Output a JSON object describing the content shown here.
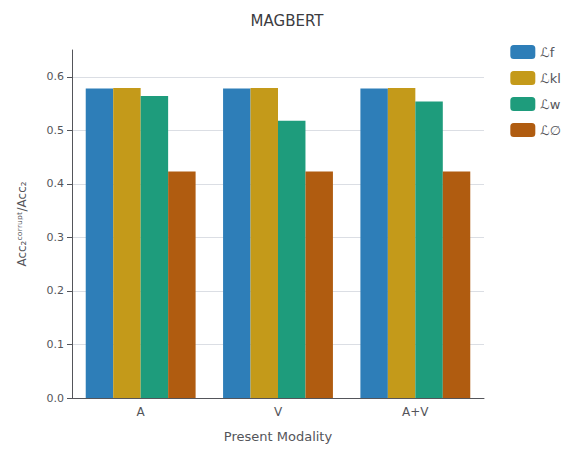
{
  "chart_data": {
    "type": "bar",
    "title": "MAGBERT",
    "categories": [
      "A",
      "V",
      "A+V"
    ],
    "series": [
      {
        "name": "ℒf",
        "color": "#2e7eb8",
        "values": [
          0.578,
          0.578,
          0.578
        ]
      },
      {
        "name": "ℒkl",
        "color": "#c49a1a",
        "values": [
          0.579,
          0.579,
          0.579
        ]
      },
      {
        "name": "ℒw",
        "color": "#1e9c7c",
        "values": [
          0.564,
          0.518,
          0.554
        ]
      },
      {
        "name": "ℒ∅",
        "color": "#b05c10",
        "values": [
          0.423,
          0.423,
          0.423
        ]
      }
    ],
    "xlabel": "Present Modality",
    "ylabel": "Acc₂ᶜᵒʳʳᵘᵖᵗ/Acc₂",
    "ylim": [
      0.0,
      0.65
    ],
    "yticks": [
      {
        "value": 0.0,
        "label": "0.0"
      },
      {
        "value": 0.1,
        "label": "0.1"
      },
      {
        "value": 0.2,
        "label": "0.2"
      },
      {
        "value": 0.3,
        "label": "0.3"
      },
      {
        "value": 0.4,
        "label": "0.4"
      },
      {
        "value": 0.5,
        "label": "0.5"
      },
      {
        "value": 0.6,
        "label": "0.6"
      }
    ],
    "grid": true,
    "legend": "right"
  }
}
